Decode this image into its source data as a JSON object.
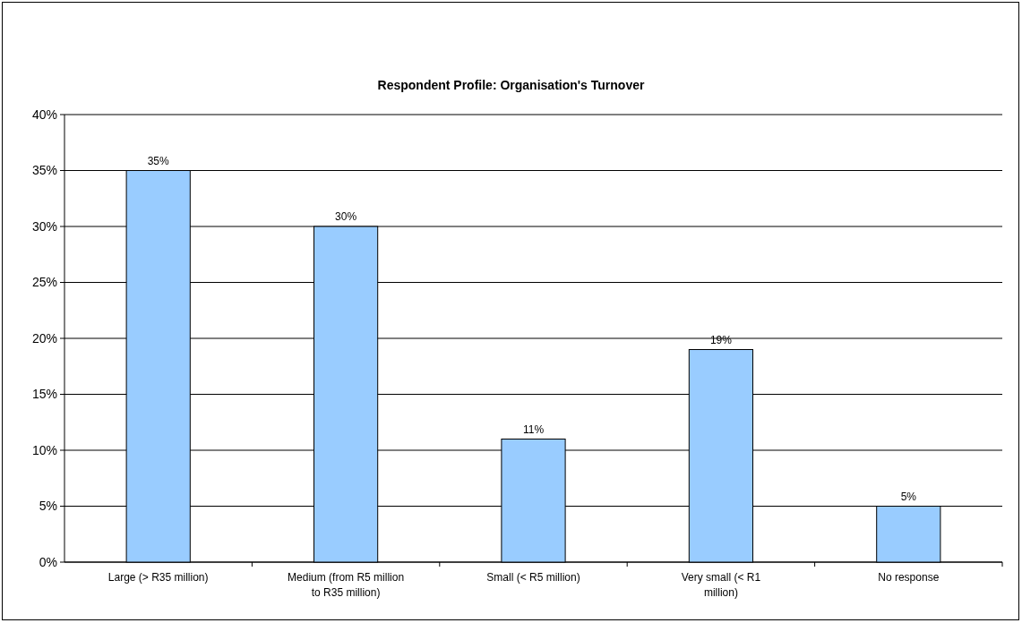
{
  "chart_data": {
    "type": "bar",
    "title": "Respondent Profile: Organisation's Turnover",
    "categories": [
      "Large (> R35 million)",
      "Medium (from R5 million to R35 million)",
      "Small (< R5 million)",
      "Very small (< R1 million)",
      "No response"
    ],
    "values": [
      35,
      30,
      11,
      19,
      5
    ],
    "color": "#99ccff",
    "ylim": [
      0,
      40
    ],
    "yticks": [
      {
        "value": 0,
        "label": "0%"
      },
      {
        "value": 5,
        "label": "5%"
      },
      {
        "value": 10,
        "label": "10%"
      },
      {
        "value": 15,
        "label": "15%"
      },
      {
        "value": 20,
        "label": "20%"
      },
      {
        "value": 25,
        "label": "25%"
      },
      {
        "value": 30,
        "label": "30%"
      },
      {
        "value": 35,
        "label": "35%"
      },
      {
        "value": 40,
        "label": "40%"
      }
    ],
    "value_labels": [
      "35%",
      "30%",
      "11%",
      "19%",
      "5%"
    ],
    "grid": "y"
  }
}
